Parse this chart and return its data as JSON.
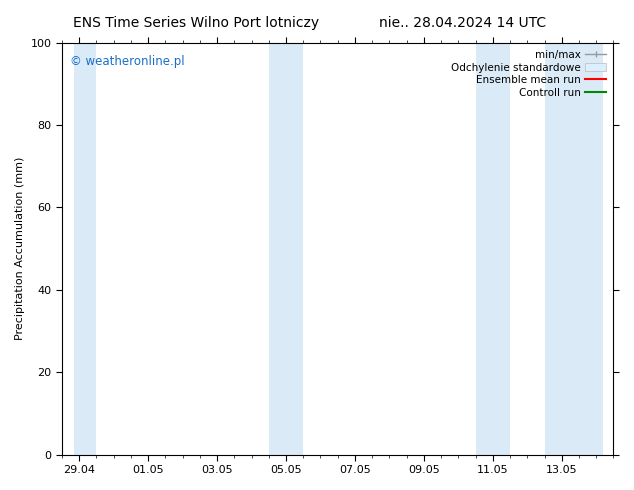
{
  "title_left": "ENS Time Series Wilno Port lotniczy",
  "title_right": "nie.. 28.04.2024 14 UTC",
  "ylabel": "Precipitation Accumulation (mm)",
  "watermark": "© weatheronline.pl",
  "watermark_color": "#1a6ec7",
  "ylim": [
    0,
    100
  ],
  "yticks": [
    0,
    20,
    40,
    60,
    80,
    100
  ],
  "xtick_labels": [
    "29.04",
    "01.05",
    "03.05",
    "05.05",
    "07.05",
    "09.05",
    "11.05",
    "13.05"
  ],
  "xtick_positions": [
    0,
    2,
    4,
    6,
    8,
    10,
    12,
    14
  ],
  "xmin": -0.15,
  "xmax": 15.2,
  "bg_color": "#ffffff",
  "plot_bg_color": "#ffffff",
  "shaded_band_color": "#daeaf7",
  "shaded_bands": [
    [
      -0.15,
      0.5
    ],
    [
      5.5,
      6.5
    ],
    [
      11.5,
      12.5
    ],
    [
      13.5,
      15.2
    ]
  ],
  "legend_items": [
    {
      "label": "min/max",
      "color": "#aaaaaa",
      "style": "minmax"
    },
    {
      "label": "Odchylenie standardowe",
      "color": "#ccddee",
      "style": "band"
    },
    {
      "label": "Ensemble mean run",
      "color": "#ff0000",
      "style": "line"
    },
    {
      "label": "Controll run",
      "color": "#008800",
      "style": "line"
    }
  ],
  "font_family": "DejaVu Sans",
  "title_fontsize": 10,
  "tick_fontsize": 8,
  "label_fontsize": 8,
  "watermark_fontsize": 8.5
}
